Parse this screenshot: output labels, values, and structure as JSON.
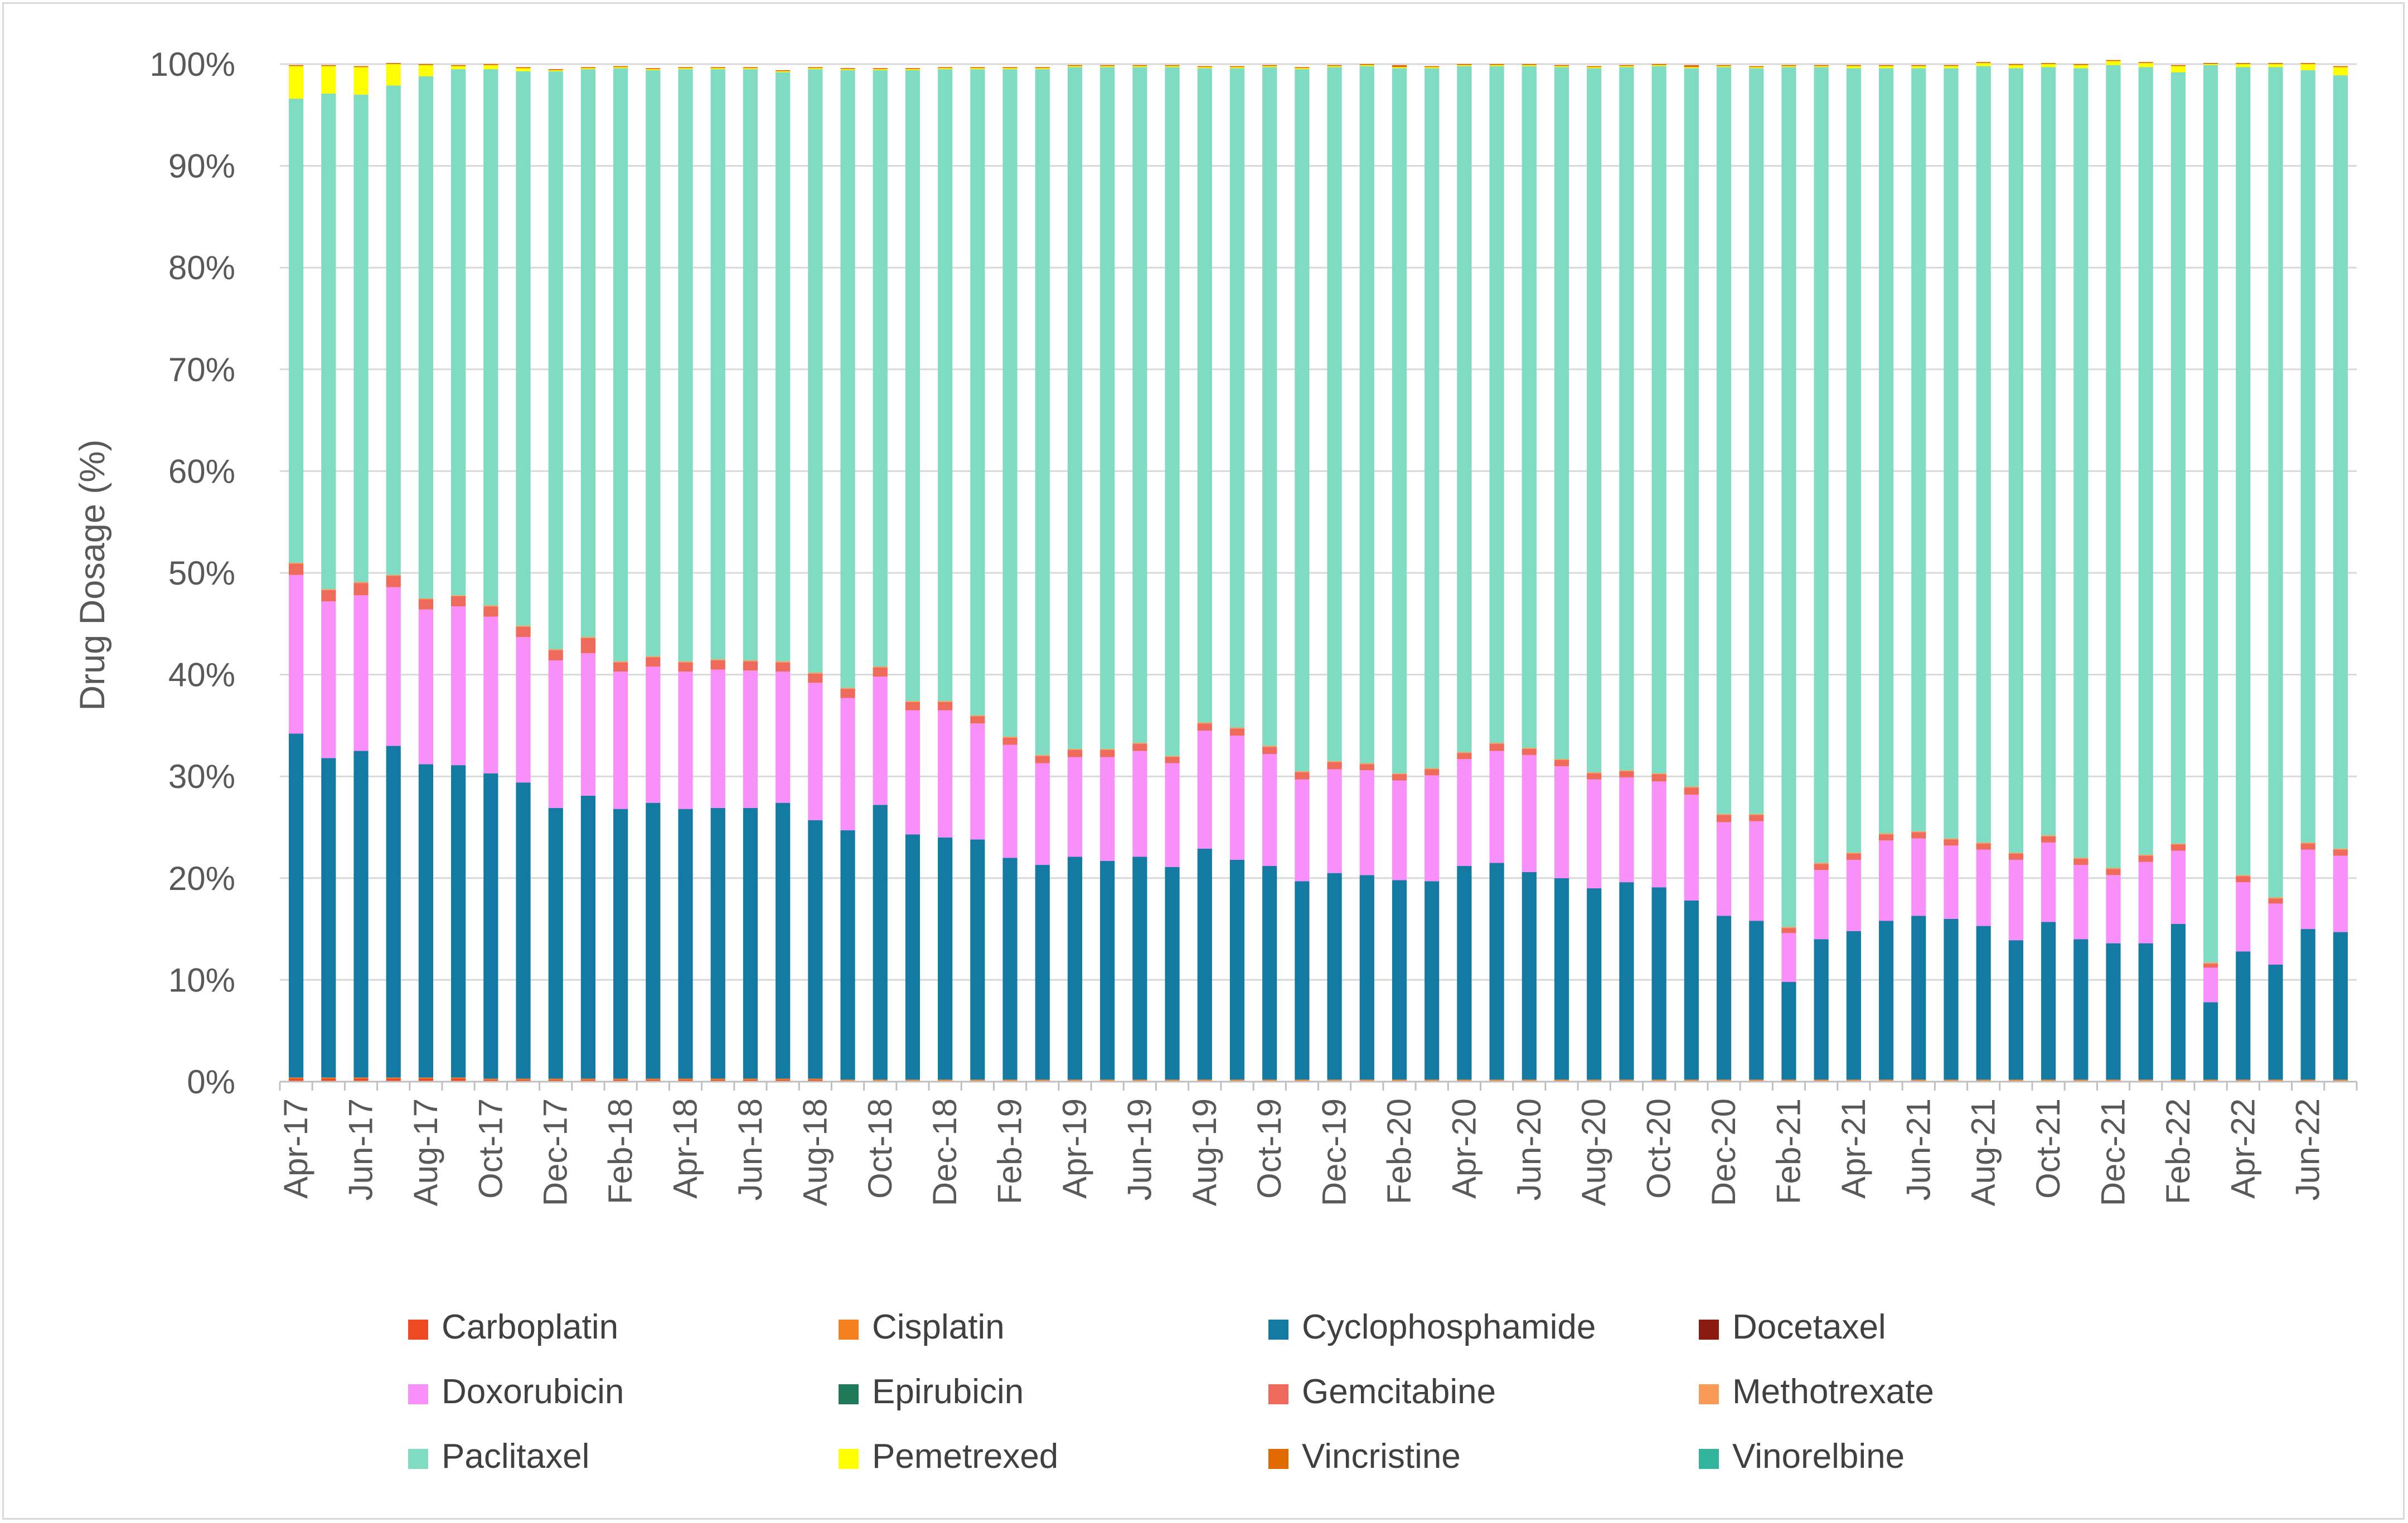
{
  "chart_data": {
    "type": "bar",
    "stacked": true,
    "title": "",
    "xlabel": "",
    "ylabel": "Drug Dosage (%)",
    "ylim": [
      0,
      100
    ],
    "y_ticks": [
      "0%",
      "10%",
      "20%",
      "30%",
      "40%",
      "50%",
      "60%",
      "70%",
      "80%",
      "90%",
      "100%"
    ],
    "grid": "horizontal",
    "legend_position": "bottom",
    "categories": [
      "Apr-17",
      "May-17",
      "Jun-17",
      "Jul-17",
      "Aug-17",
      "Sep-17",
      "Oct-17",
      "Nov-17",
      "Dec-17",
      "Jan-18",
      "Feb-18",
      "Mar-18",
      "Apr-18",
      "May-18",
      "Jun-18",
      "Jul-18",
      "Aug-18",
      "Sep-18",
      "Oct-18",
      "Nov-18",
      "Dec-18",
      "Jan-19",
      "Feb-19",
      "Mar-19",
      "Apr-19",
      "May-19",
      "Jun-19",
      "Jul-19",
      "Aug-19",
      "Sep-19",
      "Oct-19",
      "Nov-19",
      "Dec-19",
      "Jan-20",
      "Feb-20",
      "Mar-20",
      "Apr-20",
      "May-20",
      "Jun-20",
      "Jul-20",
      "Aug-20",
      "Sep-20",
      "Oct-20",
      "Nov-20",
      "Dec-20",
      "Jan-21",
      "Feb-21",
      "Mar-21",
      "Apr-21",
      "May-21",
      "Jun-21",
      "Jul-21",
      "Aug-21",
      "Sep-21",
      "Oct-21",
      "Nov-21",
      "Dec-21",
      "Jan-22",
      "Feb-22",
      "Mar-22",
      "Apr-22",
      "May-22",
      "Jun-22",
      "Jul-22"
    ],
    "x_tick_labels": [
      "Apr-17",
      "Jun-17",
      "Aug-17",
      "Oct-17",
      "Dec-17",
      "Feb-18",
      "Apr-18",
      "Jun-18",
      "Aug-18",
      "Oct-18",
      "Dec-18",
      "Feb-19",
      "Apr-19",
      "Jun-19",
      "Aug-19",
      "Oct-19",
      "Dec-19",
      "Feb-20",
      "Apr-20",
      "Jun-20",
      "Aug-20",
      "Oct-20",
      "Dec-20",
      "Feb-21",
      "Apr-21",
      "Jun-21",
      "Aug-21",
      "Oct-21",
      "Dec-21",
      "Feb-22",
      "Apr-22",
      "Jun-22"
    ],
    "series": [
      {
        "name": "Carboplatin",
        "color": "#ee4b24",
        "values": [
          0.3,
          0.3,
          0.3,
          0.3,
          0.3,
          0.3,
          0.2,
          0.2,
          0.2,
          0.2,
          0.2,
          0.2,
          0.2,
          0.2,
          0.2,
          0.2,
          0.2,
          0.1,
          0.1,
          0.1,
          0.1,
          0.1,
          0.1,
          0.1,
          0.1,
          0.1,
          0.1,
          0.1,
          0.1,
          0.1,
          0.1,
          0.1,
          0.1,
          0.1,
          0.1,
          0.1,
          0.1,
          0.1,
          0.1,
          0.1,
          0.1,
          0.1,
          0.1,
          0.1,
          0.1,
          0.1,
          0.1,
          0.1,
          0.1,
          0.1,
          0.1,
          0.1,
          0.1,
          0.1,
          0.1,
          0.1,
          0.1,
          0.1,
          0.1,
          0.1,
          0.1,
          0.1,
          0.1,
          0.1
        ]
      },
      {
        "name": "Cisplatin",
        "color": "#f5801f",
        "values": [
          0.1,
          0.1,
          0.1,
          0.1,
          0.1,
          0.1,
          0.1,
          0.1,
          0.1,
          0.1,
          0.1,
          0.1,
          0.1,
          0.1,
          0.1,
          0.1,
          0.1,
          0.1,
          0.1,
          0.1,
          0.1,
          0.1,
          0.1,
          0.1,
          0.1,
          0.1,
          0.1,
          0.1,
          0.1,
          0.1,
          0.1,
          0.1,
          0.1,
          0.1,
          0.1,
          0.1,
          0.1,
          0.1,
          0.1,
          0.1,
          0.1,
          0.1,
          0.1,
          0.1,
          0.1,
          0.1,
          0.1,
          0.1,
          0.1,
          0.1,
          0.1,
          0.1,
          0.1,
          0.1,
          0.1,
          0.1,
          0.1,
          0.1,
          0.1,
          0.1,
          0.1,
          0.1,
          0.1,
          0.1
        ]
      },
      {
        "name": "Cyclophosphamide",
        "color": "#127aa3",
        "values": [
          33.8,
          31.4,
          32.1,
          32.6,
          30.8,
          30.7,
          30.0,
          29.1,
          26.6,
          27.8,
          26.5,
          27.1,
          26.5,
          26.6,
          26.6,
          27.1,
          25.4,
          24.5,
          27.0,
          24.1,
          23.8,
          23.6,
          21.8,
          21.1,
          21.9,
          21.5,
          21.9,
          20.9,
          22.7,
          21.6,
          21.0,
          19.5,
          20.3,
          20.1,
          19.6,
          19.5,
          21.0,
          21.3,
          20.4,
          19.8,
          18.8,
          19.4,
          18.9,
          17.6,
          16.1,
          15.6,
          9.6,
          13.8,
          14.6,
          15.6,
          16.1,
          15.8,
          15.1,
          13.7,
          15.5,
          13.8,
          13.4,
          13.4,
          15.3,
          7.6,
          12.6,
          11.3,
          14.8,
          14.5
        ]
      },
      {
        "name": "Docetaxel",
        "color": "#8b1a10",
        "values": [
          0,
          0,
          0,
          0,
          0,
          0,
          0,
          0,
          0,
          0,
          0,
          0,
          0,
          0,
          0,
          0,
          0,
          0,
          0,
          0,
          0,
          0,
          0,
          0,
          0,
          0,
          0,
          0,
          0,
          0,
          0,
          0,
          0,
          0,
          0,
          0,
          0,
          0,
          0,
          0,
          0,
          0,
          0,
          0,
          0,
          0,
          0,
          0,
          0,
          0,
          0,
          0,
          0,
          0,
          0,
          0,
          0,
          0,
          0,
          0,
          0,
          0,
          0,
          0
        ]
      },
      {
        "name": "Doxorubicin",
        "color": "#f98ff9",
        "values": [
          15.6,
          15.4,
          15.3,
          15.6,
          15.2,
          15.6,
          15.4,
          14.3,
          14.5,
          14.0,
          13.5,
          13.4,
          13.5,
          13.6,
          13.5,
          12.9,
          13.5,
          13.0,
          12.6,
          12.2,
          12.5,
          11.4,
          11.1,
          10.0,
          9.8,
          10.2,
          10.4,
          10.2,
          11.6,
          12.2,
          11.0,
          10.0,
          10.2,
          10.3,
          9.8,
          10.4,
          10.5,
          11.0,
          11.5,
          11.0,
          10.7,
          10.3,
          10.4,
          10.4,
          9.2,
          9.8,
          4.8,
          6.8,
          7.0,
          7.9,
          7.6,
          7.2,
          7.5,
          7.9,
          7.8,
          7.3,
          6.7,
          8.0,
          7.2,
          3.4,
          6.8,
          6.0,
          7.8,
          7.5
        ]
      },
      {
        "name": "Epirubicin",
        "color": "#1e7a58",
        "values": [
          0,
          0,
          0,
          0,
          0,
          0,
          0,
          0,
          0,
          0,
          0,
          0,
          0,
          0,
          0,
          0,
          0,
          0,
          0,
          0,
          0,
          0,
          0,
          0,
          0,
          0,
          0,
          0,
          0,
          0,
          0,
          0,
          0,
          0,
          0,
          0,
          0,
          0,
          0,
          0,
          0,
          0,
          0,
          0,
          0,
          0,
          0,
          0,
          0,
          0,
          0,
          0,
          0,
          0,
          0,
          0,
          0,
          0,
          0,
          0,
          0,
          0,
          0,
          0
        ]
      },
      {
        "name": "Gemcitabine",
        "color": "#ee6a5b",
        "values": [
          1.1,
          1.1,
          1.2,
          1.1,
          1.0,
          1.0,
          1.0,
          1.0,
          1.0,
          1.5,
          0.9,
          0.9,
          0.9,
          0.9,
          0.9,
          0.9,
          0.9,
          0.9,
          0.9,
          0.8,
          0.8,
          0.7,
          0.7,
          0.7,
          0.7,
          0.7,
          0.7,
          0.6,
          0.7,
          0.7,
          0.7,
          0.7,
          0.7,
          0.6,
          0.6,
          0.6,
          0.6,
          0.7,
          0.6,
          0.6,
          0.6,
          0.6,
          0.7,
          0.7,
          0.7,
          0.6,
          0.5,
          0.6,
          0.6,
          0.6,
          0.6,
          0.6,
          0.6,
          0.6,
          0.6,
          0.6,
          0.6,
          0.6,
          0.6,
          0.4,
          0.6,
          0.5,
          0.6,
          0.6
        ]
      },
      {
        "name": "Methotrexate",
        "color": "#fa9a58",
        "values": [
          0.1,
          0.1,
          0.1,
          0.1,
          0.1,
          0.1,
          0.1,
          0.1,
          0.1,
          0.1,
          0.1,
          0.1,
          0.1,
          0.1,
          0.1,
          0.1,
          0.1,
          0.1,
          0.1,
          0.1,
          0.1,
          0.1,
          0.1,
          0.1,
          0.1,
          0.1,
          0.1,
          0.1,
          0.1,
          0.1,
          0.1,
          0.1,
          0.1,
          0.1,
          0.1,
          0.1,
          0.1,
          0.1,
          0.1,
          0.1,
          0.1,
          0.1,
          0.1,
          0.1,
          0.1,
          0.1,
          0.1,
          0.1,
          0.1,
          0.1,
          0.1,
          0.1,
          0.1,
          0.1,
          0.1,
          0.1,
          0.1,
          0.1,
          0.1,
          0.1,
          0.1,
          0.1,
          0.1,
          0.1
        ]
      },
      {
        "name": "Paclitaxel",
        "color": "#7fdbc1",
        "values": [
          45.6,
          48.7,
          47.9,
          48.1,
          51.3,
          51.7,
          52.7,
          54.5,
          56.8,
          55.8,
          58.3,
          57.6,
          58.2,
          58.0,
          58.1,
          57.9,
          59.3,
          60.7,
          58.6,
          62.0,
          62.1,
          63.5,
          65.6,
          67.4,
          67.0,
          67.0,
          66.4,
          67.7,
          64.3,
          64.8,
          66.7,
          69.0,
          68.2,
          68.5,
          69.3,
          68.8,
          67.4,
          66.5,
          67.0,
          68.0,
          69.2,
          69.1,
          69.5,
          70.6,
          73.4,
          73.3,
          84.5,
          78.2,
          77.1,
          75.2,
          75.0,
          75.7,
          76.3,
          77.1,
          75.5,
          77.6,
          78.9,
          77.4,
          75.8,
          88.2,
          79.4,
          81.6,
          75.9,
          76.0
        ]
      },
      {
        "name": "Pemetrexed",
        "color": "#ffff00",
        "values": [
          3.2,
          2.7,
          2.7,
          2.1,
          1.1,
          0.3,
          0.4,
          0.3,
          0.1,
          0.1,
          0.1,
          0.1,
          0.1,
          0.1,
          0.1,
          0.1,
          0.1,
          0.1,
          0.1,
          0.1,
          0.1,
          0.1,
          0.1,
          0.1,
          0.1,
          0.1,
          0.1,
          0.1,
          0.1,
          0.1,
          0.1,
          0.1,
          0.1,
          0.1,
          0.1,
          0.1,
          0.1,
          0.1,
          0.1,
          0.1,
          0.1,
          0.1,
          0.1,
          0.1,
          0.1,
          0.1,
          0.1,
          0.1,
          0.2,
          0.2,
          0.2,
          0.2,
          0.3,
          0.3,
          0.3,
          0.3,
          0.4,
          0.4,
          0.6,
          0.1,
          0.3,
          0.3,
          0.6,
          0.8
        ]
      },
      {
        "name": "Vincristine",
        "color": "#e06a00",
        "values": [
          0.1,
          0.1,
          0.1,
          0.1,
          0.1,
          0.1,
          0.1,
          0.1,
          0.1,
          0.1,
          0.1,
          0.1,
          0.1,
          0.1,
          0.1,
          0.1,
          0.1,
          0.1,
          0.1,
          0.1,
          0.1,
          0.1,
          0.1,
          0.1,
          0.1,
          0.1,
          0.1,
          0.1,
          0.1,
          0.1,
          0.1,
          0.1,
          0.1,
          0.1,
          0.2,
          0.1,
          0.1,
          0.1,
          0.1,
          0.1,
          0.1,
          0.1,
          0.1,
          0.2,
          0.1,
          0.1,
          0.1,
          0.1,
          0.1,
          0.1,
          0.1,
          0.1,
          0.1,
          0.1,
          0.1,
          0.1,
          0.1,
          0.1,
          0.1,
          0.1,
          0.1,
          0.1,
          0.1,
          0.1
        ]
      },
      {
        "name": "Vinorelbine",
        "color": "#33b59b",
        "values": [
          0,
          0,
          0,
          0,
          0,
          0,
          0,
          0,
          0,
          0,
          0,
          0,
          0,
          0,
          0,
          0,
          0,
          0,
          0,
          0,
          0,
          0,
          0,
          0,
          0,
          0,
          0,
          0,
          0,
          0,
          0,
          0,
          0,
          0,
          0,
          0,
          0,
          0,
          0,
          0,
          0,
          0,
          0,
          0,
          0,
          0,
          0,
          0,
          0,
          0,
          0,
          0,
          0,
          0,
          0,
          0,
          0,
          0,
          0,
          0,
          0,
          0,
          0,
          0
        ]
      }
    ]
  }
}
